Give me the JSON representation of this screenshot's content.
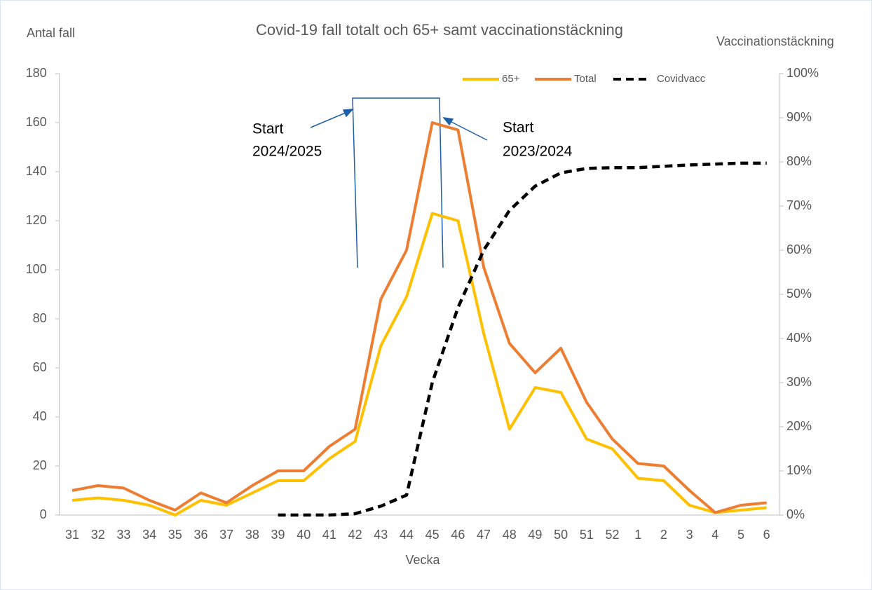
{
  "chart_data": {
    "type": "line",
    "title": "Covid-19 fall totalt och 65+ samt vaccinationstäckning",
    "y_label": "Antal fall",
    "y2_label": "Vaccinationstäckning",
    "x_label": "Vecka",
    "categories": [
      "31",
      "32",
      "33",
      "34",
      "35",
      "36",
      "37",
      "38",
      "39",
      "40",
      "41",
      "42",
      "43",
      "44",
      "45",
      "46",
      "47",
      "48",
      "49",
      "50",
      "51",
      "52",
      "1",
      "2",
      "3",
      "4",
      "5",
      "6"
    ],
    "series": [
      {
        "name": "65+",
        "color": "#ffc000",
        "line_style": "solid",
        "values": [
          6,
          7,
          6,
          4,
          0,
          6,
          4,
          9,
          14,
          14,
          23,
          30,
          69,
          89,
          123,
          120,
          74,
          35,
          52,
          50,
          31,
          27,
          15,
          14,
          4,
          1,
          2,
          3
        ]
      },
      {
        "name": "Total",
        "color": "#ed7d31",
        "line_style": "solid",
        "values": [
          10,
          12,
          11,
          6,
          2,
          9,
          5,
          12,
          18,
          18,
          28,
          35,
          88,
          108,
          160,
          157,
          101,
          70,
          58,
          68,
          46,
          31,
          21,
          20,
          10,
          1,
          4,
          5
        ]
      },
      {
        "name": "Covidvacc",
        "color": "#000000",
        "line_style": "dashed",
        "axis": "y2",
        "values": [
          null,
          null,
          null,
          null,
          null,
          null,
          null,
          null,
          0,
          0,
          0,
          0.3,
          2,
          4.5,
          30,
          47,
          60,
          69,
          74.5,
          77.5,
          78.5,
          78.7,
          78.7,
          79,
          79.3,
          79.5,
          79.7,
          79.7
        ]
      }
    ],
    "ylim": [
      0,
      180
    ],
    "yticks": [
      0,
      20,
      40,
      60,
      80,
      100,
      120,
      140,
      160,
      180
    ],
    "y2lim": [
      0,
      100
    ],
    "y2ticks": [
      {
        "value": 0,
        "label": "0%"
      },
      {
        "value": 10,
        "label": "10%"
      },
      {
        "value": 20,
        "label": "20%"
      },
      {
        "value": 30,
        "label": "30%"
      },
      {
        "value": 40,
        "label": "40%"
      },
      {
        "value": 50,
        "label": "50%"
      },
      {
        "value": 60,
        "label": "60%"
      },
      {
        "value": 70,
        "label": "70%"
      },
      {
        "value": 80,
        "label": "80%"
      },
      {
        "value": 90,
        "label": "90%"
      },
      {
        "value": 100,
        "label": "100%"
      }
    ],
    "legend": "top-right",
    "annotations": [
      {
        "lines": [
          "Start",
          "2024/2025"
        ]
      },
      {
        "lines": [
          "Start",
          "2023/2024"
        ]
      }
    ]
  }
}
